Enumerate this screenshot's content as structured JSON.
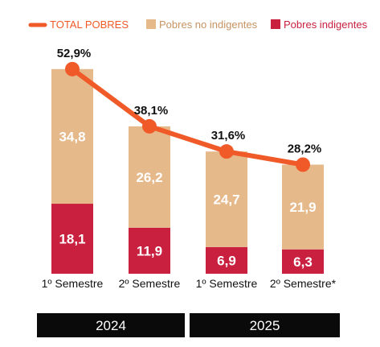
{
  "legend": {
    "total": "TOTAL POBRES",
    "no_indigentes": "Pobres no indigentes",
    "indigentes": "Pobres indigentes"
  },
  "colors": {
    "total": "#f05a28",
    "no_indigentes": "#e6b98b",
    "indigentes": "#c8203e",
    "year_band": "#0a0a0a"
  },
  "chart_data": {
    "type": "bar",
    "stacked": true,
    "categories": [
      "1º Semestre",
      "2º Semestre",
      "1º Semestre",
      "2º Semestre*"
    ],
    "groups": [
      {
        "label": "2024",
        "categories": [
          0,
          1
        ]
      },
      {
        "label": "2025",
        "categories": [
          2,
          3
        ]
      }
    ],
    "series": [
      {
        "name": "Pobres indigentes",
        "values": [
          18.1,
          11.9,
          6.9,
          6.3
        ],
        "labels": [
          "18,1",
          "11,9",
          "6,9",
          "6,3"
        ]
      },
      {
        "name": "Pobres no indigentes",
        "values": [
          34.8,
          26.2,
          24.7,
          21.9
        ],
        "labels": [
          "34,8",
          "26,2",
          "24,7",
          "21,9"
        ]
      }
    ],
    "line": {
      "name": "TOTAL POBRES",
      "values": [
        52.9,
        38.1,
        31.6,
        28.2
      ],
      "labels": [
        "52,9%",
        "38,1%",
        "31,6%",
        "28,2%"
      ]
    },
    "ylim": [
      0,
      60
    ],
    "grid": false,
    "legend_position": "top"
  }
}
